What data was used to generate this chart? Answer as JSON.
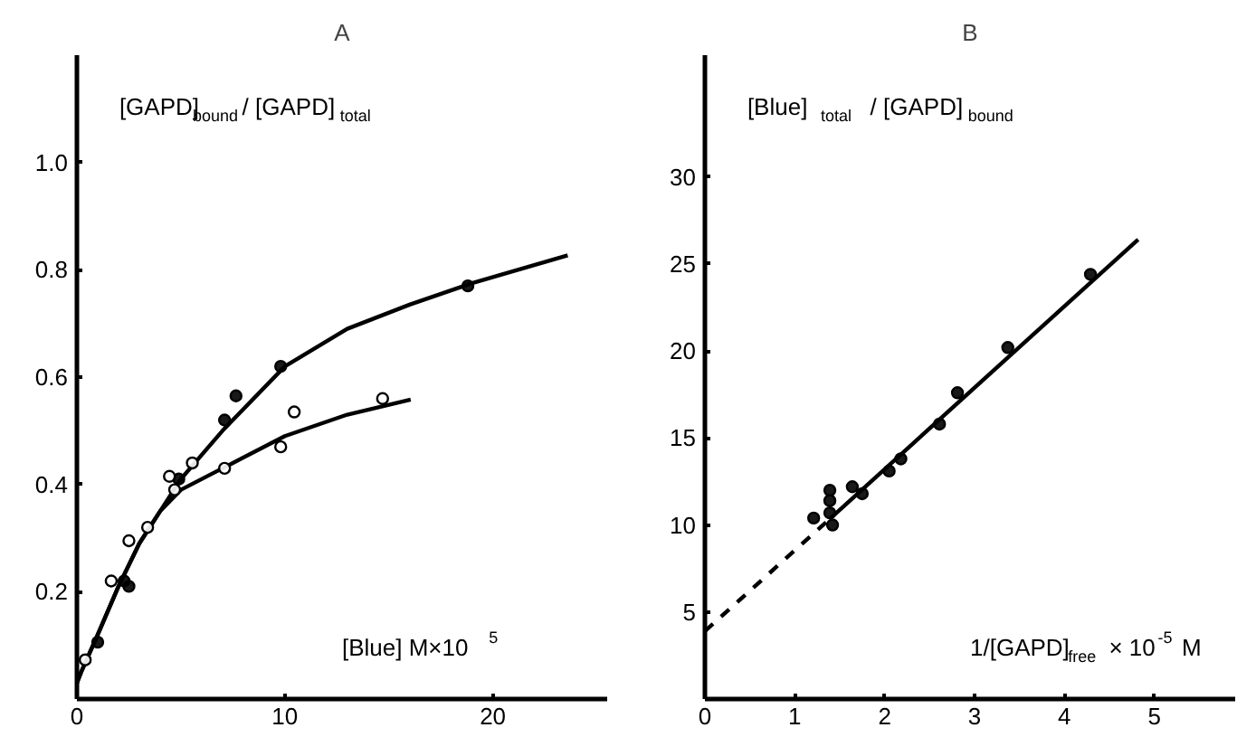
{
  "chart_data": [
    {
      "type": "scatter",
      "title": "A",
      "ylabel": "[GAPD]$_{bound}$ / [GAPD]$_{total}$",
      "xlabel": "[Blue]  M×10$^{5}$",
      "xlim": [
        0,
        25.5
      ],
      "ylim": [
        0,
        1.2
      ],
      "xticks": [
        0,
        10,
        20
      ],
      "yticks": [
        0.2,
        0.4,
        0.6,
        0.8,
        {
          "value": 1.0,
          "label": "1.0"
        }
      ],
      "grid": false,
      "marker": "circle",
      "series": [
        {
          "color": "#000000",
          "x": [
            1.0,
            2.27,
            2.5,
            4.9,
            7.1,
            7.65,
            9.8,
            18.8
          ],
          "values": [
            0.106,
            0.22,
            0.21,
            0.41,
            0.52,
            0.565,
            0.62,
            0.77
          ]
        },
        {
          "color": "#ffffff",
          "x": [
            0.4,
            1.65,
            2.5,
            3.4,
            4.45,
            4.7,
            5.55,
            7.1,
            9.8,
            10.45,
            14.7
          ],
          "values": [
            0.073,
            0.22,
            0.295,
            0.32,
            0.415,
            0.39,
            0.44,
            0.43,
            0.47,
            0.535,
            0.56
          ]
        },
        {
          "type": "line",
          "marker": "none",
          "color": "#000000",
          "x": [
            0,
            0.2,
            1,
            2,
            3,
            4,
            5,
            7,
            10,
            13,
            16,
            19,
            23.6
          ],
          "values": [
            0.03,
            0.05,
            0.12,
            0.21,
            0.29,
            0.35,
            0.41,
            0.5,
            0.62,
            0.69,
            0.735,
            0.775,
            0.827
          ]
        },
        {
          "type": "line",
          "marker": "none",
          "color": "#000000",
          "x": [
            0,
            0.2,
            1,
            2,
            3,
            4,
            5,
            7,
            10,
            13,
            16.05
          ],
          "values": [
            0.03,
            0.05,
            0.12,
            0.21,
            0.29,
            0.35,
            0.39,
            0.43,
            0.49,
            0.53,
            0.558
          ]
        }
      ]
    },
    {
      "type": "scatter",
      "title": "B",
      "ylabel": "[Blue]$_{total}$ / [GAPD]$_{bound}$",
      "xlabel": "1/[GAPD]$_{free}$ × 10$^{-5}$ M",
      "xlim": [
        0,
        5.9
      ],
      "ylim": [
        0,
        37
      ],
      "xticks": [
        0,
        1,
        2,
        3,
        4,
        5
      ],
      "yticks": [
        5,
        10,
        15,
        20,
        25,
        30
      ],
      "grid": false,
      "marker": "circle",
      "series": [
        {
          "color": "#000000",
          "x": [
            1.21,
            1.39,
            1.39,
            1.39,
            1.42,
            1.64,
            1.75,
            2.05,
            2.18,
            2.61,
            2.81,
            3.37,
            4.29
          ],
          "values": [
            10.4,
            10.7,
            11.4,
            12.0,
            10.0,
            12.2,
            11.8,
            13.1,
            13.8,
            15.8,
            17.6,
            20.2,
            24.4
          ]
        },
        {
          "type": "line",
          "marker": "none",
          "color": "#000000",
          "line_style": "solid",
          "x": [
            1.4,
            4.82
          ],
          "values": [
            10.4,
            26.4
          ]
        },
        {
          "type": "line",
          "marker": "none",
          "color": "#000000",
          "line_style": "dashed",
          "x": [
            0,
            1.4
          ],
          "values": [
            3.9,
            10.4
          ]
        }
      ]
    }
  ]
}
